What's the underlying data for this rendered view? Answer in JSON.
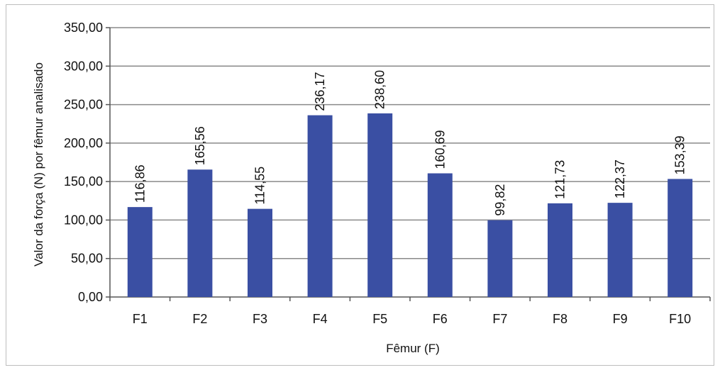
{
  "chart_data": {
    "type": "bar",
    "categories": [
      "F1",
      "F2",
      "F3",
      "F4",
      "F5",
      "F6",
      "F7",
      "F8",
      "F9",
      "F10"
    ],
    "values": [
      116.86,
      165.56,
      114.55,
      236.17,
      238.6,
      160.69,
      99.82,
      121.73,
      122.37,
      153.39
    ],
    "value_labels": [
      "116,86",
      "165,56",
      "114,55",
      "236,17",
      "238,60",
      "160,69",
      "99,82",
      "121,73",
      "122,37",
      "153,39"
    ],
    "title": "",
    "xlabel": "Fêmur (F)",
    "ylabel": "Valor da força (N) por fêmur analisado",
    "ylim": [
      0,
      350
    ],
    "yticks": [
      0,
      50,
      100,
      150,
      200,
      250,
      300,
      350
    ],
    "ytick_labels": [
      "0,00",
      "50,00",
      "100,00",
      "150,00",
      "200,00",
      "250,00",
      "300,00",
      "350,00"
    ],
    "grid": true,
    "legend": "none",
    "colors": {
      "bar": "#3a4fa3",
      "grid": "#8a8a8a",
      "axis": "#555555"
    }
  }
}
